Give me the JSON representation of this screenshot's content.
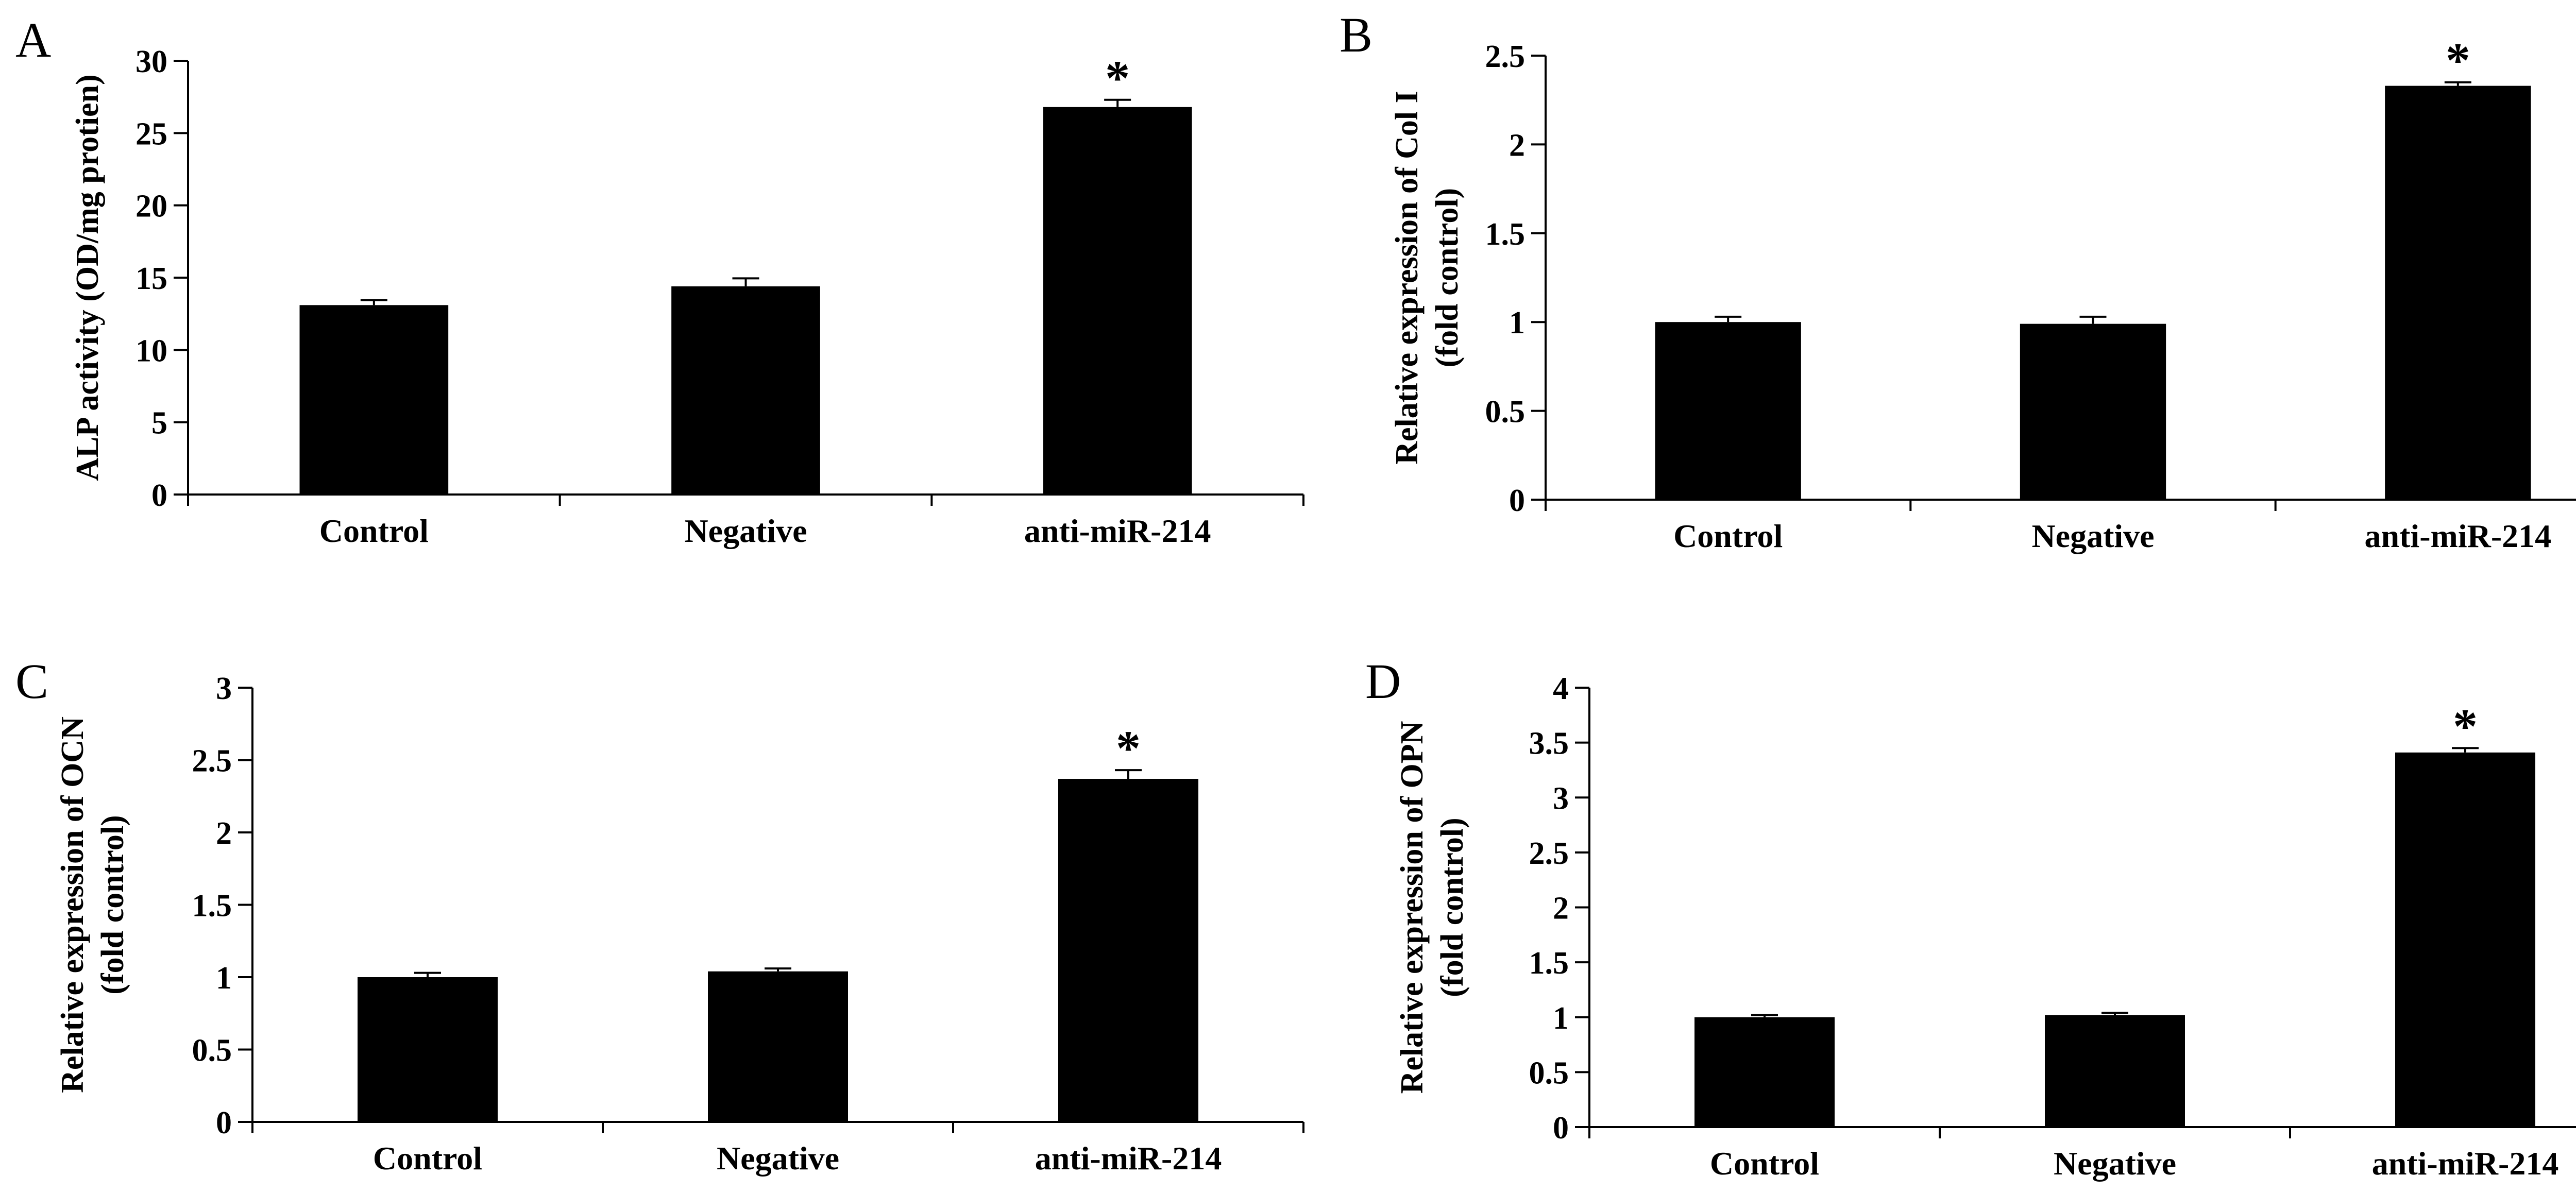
{
  "chart_data": [
    {
      "panel": "A",
      "type": "bar",
      "categories": [
        "Control",
        "Negative",
        "anti-miR-214"
      ],
      "values": [
        13.1,
        14.4,
        26.8
      ],
      "errors": [
        0.35,
        0.55,
        0.5
      ],
      "annotations": [
        "",
        "",
        "*"
      ],
      "ylabel": [
        "ALP activity (OD/mg protien)"
      ],
      "ylim": [
        0,
        30
      ],
      "yticks": [
        0,
        5,
        10,
        15,
        20,
        25,
        30
      ],
      "ytick_labels": [
        "0",
        "5",
        "10",
        "15",
        "20",
        "25",
        "30"
      ],
      "color": "#000000"
    },
    {
      "panel": "B",
      "type": "bar",
      "categories": [
        "Control",
        "Negative",
        "anti-miR-214"
      ],
      "values": [
        1.0,
        0.99,
        2.33
      ],
      "errors": [
        0.03,
        0.04,
        0.02
      ],
      "annotations": [
        "",
        "",
        "*"
      ],
      "ylabel": [
        "Relative expression of Col I",
        "(fold control)"
      ],
      "ylim": [
        0,
        2.5
      ],
      "yticks": [
        0,
        0.5,
        1,
        1.5,
        2,
        2.5
      ],
      "ytick_labels": [
        "0",
        "0.5",
        "1",
        "1.5",
        "2",
        "2.5"
      ],
      "color": "#000000"
    },
    {
      "panel": "C",
      "type": "bar",
      "categories": [
        "Control",
        "Negative",
        "anti-miR-214"
      ],
      "values": [
        1.0,
        1.04,
        2.37
      ],
      "errors": [
        0.03,
        0.02,
        0.06
      ],
      "annotations": [
        "",
        "",
        "*"
      ],
      "ylabel": [
        "Relative expression of OCN",
        "(fold control)"
      ],
      "ylim": [
        0,
        3
      ],
      "yticks": [
        0,
        0.5,
        1,
        1.5,
        2,
        2.5,
        3
      ],
      "ytick_labels": [
        "0",
        "0.5",
        "1",
        "1.5",
        "2",
        "2.5",
        "3"
      ],
      "color": "#000000"
    },
    {
      "panel": "D",
      "type": "bar",
      "categories": [
        "Control",
        "Negative",
        "anti-miR-214"
      ],
      "values": [
        1.0,
        1.02,
        3.41
      ],
      "errors": [
        0.02,
        0.02,
        0.04
      ],
      "annotations": [
        "",
        "",
        "*"
      ],
      "ylabel": [
        "Relative expression of OPN",
        "(fold control)"
      ],
      "ylim": [
        0,
        4
      ],
      "yticks": [
        0,
        0.5,
        1,
        1.5,
        2,
        2.5,
        3,
        3.5,
        4
      ],
      "ytick_labels": [
        "0",
        "0.5",
        "1",
        "1.5",
        "2",
        "2.5",
        "3",
        "3.5",
        "4"
      ],
      "color": "#000000"
    }
  ]
}
